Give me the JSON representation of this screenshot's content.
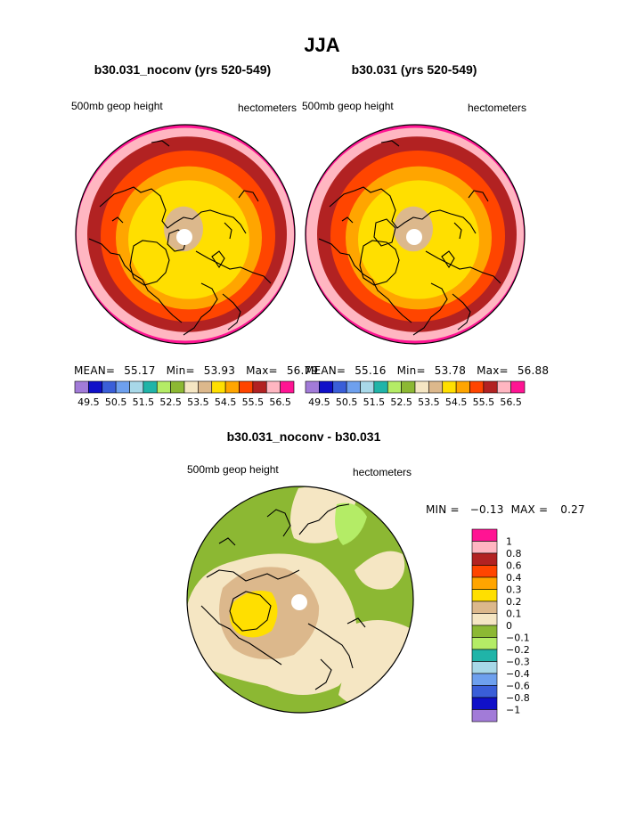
{
  "figure": {
    "title": "JJA"
  },
  "chart_data": [
    {
      "type": "heatmap",
      "projection": "polar-stereographic (north pole)",
      "title": "b30.031_noconv (yrs 520-549)",
      "left_label": "500mb geop height",
      "right_label": "hectometers",
      "stats": {
        "mean_label": "MEAN=",
        "mean": "55.17",
        "min_label": "Min=",
        "min": "53.93",
        "max_label": "Max=",
        "max": "56.79"
      },
      "contour_levels": [
        "49.5",
        "50.5",
        "51.5",
        "52.5",
        "53.5",
        "54.5",
        "55.5",
        "56.5"
      ],
      "colorbar_colors": [
        "#a27bd8",
        "#1010c8",
        "#3a5ed8",
        "#6ea0ee",
        "#a8d8e8",
        "#20b4a8",
        "#b4ec66",
        "#8cb833",
        "#f5e6c3",
        "#dcb88c",
        "#ffdf00",
        "#ffa500",
        "#ff4500",
        "#b22222",
        "#ffb6c1",
        "#ff1493"
      ],
      "bands_outer_to_inner": [
        {
          "color": "#ff1493",
          "value": "56.5+"
        },
        {
          "color": "#ffb6c1",
          "value": "56.0"
        },
        {
          "color": "#b22222",
          "value": "55.5"
        },
        {
          "color": "#ff4500",
          "value": "55.0"
        },
        {
          "color": "#ffa500",
          "value": "54.5"
        },
        {
          "color": "#ffdf00",
          "value": "54.0"
        },
        {
          "color": "#dcb88c",
          "value": "53.5"
        }
      ]
    },
    {
      "type": "heatmap",
      "projection": "polar-stereographic (north pole)",
      "title": "b30.031 (yrs 520-549)",
      "left_label": "500mb geop height",
      "right_label": "hectometers",
      "stats": {
        "mean_label": "MEAN=",
        "mean": "55.16",
        "min_label": "Min=",
        "min": "53.78",
        "max_label": "Max=",
        "max": "56.88"
      },
      "contour_levels": [
        "49.5",
        "50.5",
        "51.5",
        "52.5",
        "53.5",
        "54.5",
        "55.5",
        "56.5"
      ],
      "colorbar_colors": [
        "#a27bd8",
        "#1010c8",
        "#3a5ed8",
        "#6ea0ee",
        "#a8d8e8",
        "#20b4a8",
        "#b4ec66",
        "#8cb833",
        "#f5e6c3",
        "#dcb88c",
        "#ffdf00",
        "#ffa500",
        "#ff4500",
        "#b22222",
        "#ffb6c1",
        "#ff1493"
      ],
      "bands_outer_to_inner": [
        {
          "color": "#ff1493",
          "value": "56.5+"
        },
        {
          "color": "#ffb6c1",
          "value": "56.0"
        },
        {
          "color": "#b22222",
          "value": "55.5"
        },
        {
          "color": "#ff4500",
          "value": "55.0"
        },
        {
          "color": "#ffa500",
          "value": "54.5"
        },
        {
          "color": "#ffdf00",
          "value": "54.0"
        },
        {
          "color": "#dcb88c",
          "value": "53.5"
        }
      ]
    },
    {
      "type": "heatmap",
      "projection": "polar-stereographic (north pole)",
      "title": "b30.031_noconv - b30.031",
      "left_label": "500mb geop height",
      "right_label": "hectometers",
      "stats": {
        "min_label": "MIN =",
        "min": "−0.13",
        "max_label": "MAX =",
        "max": "0.27"
      },
      "colorbar_levels": [
        "1",
        "0.8",
        "0.6",
        "0.4",
        "0.3",
        "0.2",
        "0.1",
        "0",
        "−0.1",
        "−0.2",
        "−0.3",
        "−0.4",
        "−0.6",
        "−0.8",
        "−1"
      ],
      "colorbar_colors": [
        "#ff1493",
        "#ffb6c1",
        "#b22222",
        "#ff4500",
        "#ffa500",
        "#ffdf00",
        "#dcb88c",
        "#f5e6c3",
        "#8cb833",
        "#b4ec66",
        "#20b4a8",
        "#a8d8e8",
        "#6ea0ee",
        "#3a5ed8",
        "#1010c8",
        "#a27bd8"
      ]
    }
  ]
}
